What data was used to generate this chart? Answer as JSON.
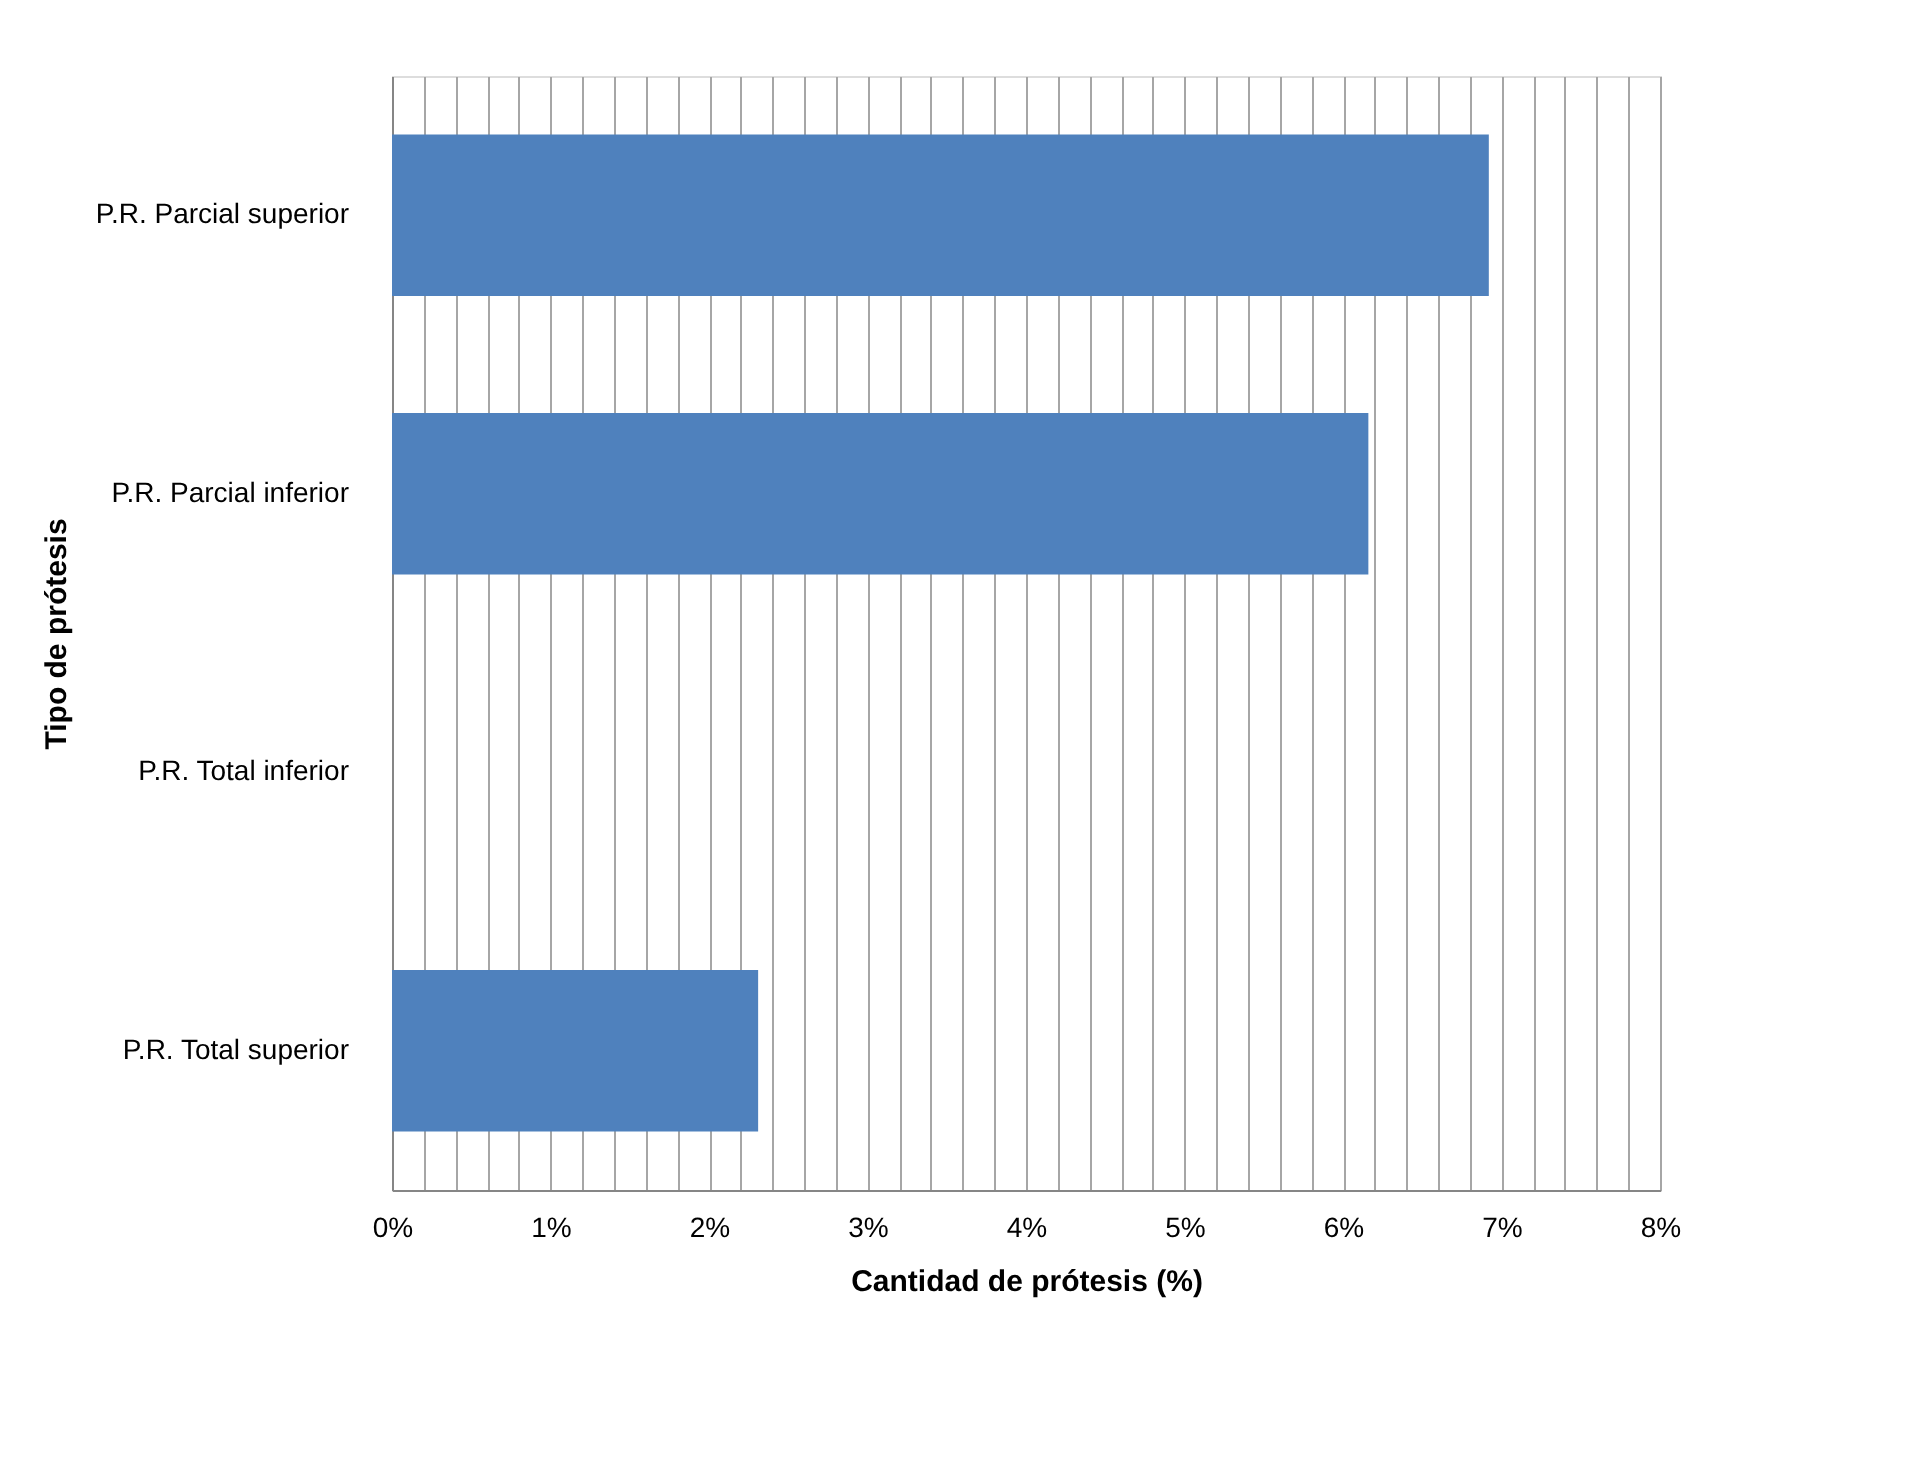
{
  "chart_data": {
    "type": "bar",
    "orientation": "horizontal",
    "xlabel": "Cantidad de prótesis (%)",
    "ylabel": "Tipo de prótesis",
    "categories": [
      "P.R. Parcial superior",
      "P.R. Parcial inferior",
      "P.R. Total inferior",
      "P.R. Total superior"
    ],
    "values": [
      6.92,
      6.16,
      0,
      2.31
    ],
    "color": "#4f81bd",
    "xlim": [
      0,
      8
    ],
    "xticks": [
      {
        "value": 0,
        "label": "0%"
      },
      {
        "value": 0.2,
        "label": null
      },
      {
        "value": 0.4,
        "label": null
      },
      {
        "value": 0.6,
        "label": null
      },
      {
        "value": 0.8,
        "label": null
      },
      {
        "value": 1,
        "label": "1%"
      },
      {
        "value": 1.2,
        "label": null
      },
      {
        "value": 1.4,
        "label": null
      },
      {
        "value": 1.6,
        "label": null
      },
      {
        "value": 1.8,
        "label": null
      },
      {
        "value": 2,
        "label": "2%"
      },
      {
        "value": 2.2,
        "label": null
      },
      {
        "value": 2.4,
        "label": null
      },
      {
        "value": 2.6,
        "label": null
      },
      {
        "value": 2.8,
        "label": null
      },
      {
        "value": 3,
        "label": "3%"
      },
      {
        "value": 3.2,
        "label": null
      },
      {
        "value": 3.4,
        "label": null
      },
      {
        "value": 3.6,
        "label": null
      },
      {
        "value": 3.8,
        "label": null
      },
      {
        "value": 4,
        "label": "4%"
      },
      {
        "value": 4.2,
        "label": null
      },
      {
        "value": 4.4,
        "label": null
      },
      {
        "value": 4.6,
        "label": null
      },
      {
        "value": 4.8,
        "label": null
      },
      {
        "value": 5,
        "label": "5%"
      },
      {
        "value": 5.2,
        "label": null
      },
      {
        "value": 5.4,
        "label": null
      },
      {
        "value": 5.6,
        "label": null
      },
      {
        "value": 5.8,
        "label": null
      },
      {
        "value": 6,
        "label": "6%"
      },
      {
        "value": 6.2,
        "label": null
      },
      {
        "value": 6.4,
        "label": null
      },
      {
        "value": 6.6,
        "label": null
      },
      {
        "value": 6.8,
        "label": null
      },
      {
        "value": 7,
        "label": "7%"
      },
      {
        "value": 7.2,
        "label": null
      },
      {
        "value": 7.4,
        "label": null
      },
      {
        "value": 7.6,
        "label": null
      },
      {
        "value": 7.8,
        "label": null
      },
      {
        "value": 8,
        "label": "8%"
      }
    ],
    "grid": "x"
  }
}
